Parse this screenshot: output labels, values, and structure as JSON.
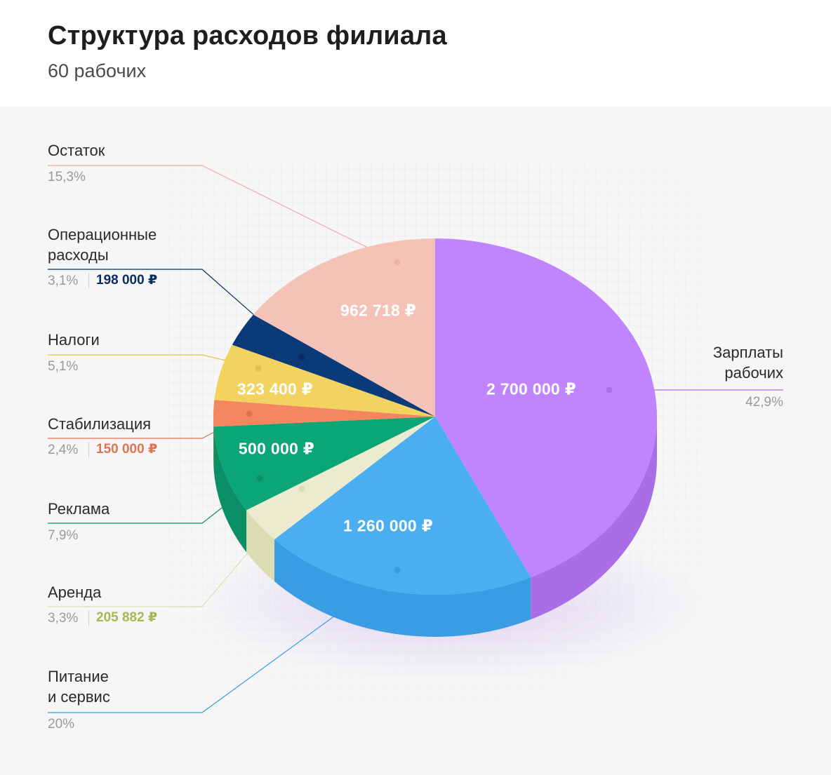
{
  "header": {
    "title": "Структура расходов филиала",
    "subtitle": "60 рабочих"
  },
  "chart_data": {
    "type": "pie",
    "title": "Структура расходов филиала",
    "subtitle": "60 рабочих",
    "slices": [
      {
        "key": "zarplaty",
        "label": "Зарплаты\nрабочих",
        "percent_label": "42,9%",
        "percent": 42.9,
        "value": 2700000,
        "value_label": "2 700 000 ₽",
        "color": "#c084fc",
        "side_color": "#a96ee6"
      },
      {
        "key": "pitanie",
        "label": "Питание\nи сервис",
        "percent_label": "20%",
        "percent": 20.0,
        "value": 1260000,
        "value_label": "1 260 000 ₽",
        "color": "#4aaef0",
        "side_color": "#3a9ce3"
      },
      {
        "key": "arenda",
        "label": "Аренда",
        "percent_label": "3,3%",
        "percent": 3.3,
        "value": 205882,
        "value_label": "205 882 ₽",
        "color": "#ecebd0",
        "side_color": "#dcdcb2"
      },
      {
        "key": "reklama",
        "label": "Реклама",
        "percent_label": "7,9%",
        "percent": 7.9,
        "value": 500000,
        "value_label": "500 000 ₽",
        "color": "#0aa676",
        "side_color": "#0b8f66"
      },
      {
        "key": "stabilizaciya",
        "label": "Стабилизация",
        "percent_label": "2,4%",
        "percent": 2.4,
        "value": 150000,
        "value_label": "150 000 ₽",
        "color": "#f4875f",
        "side_color": "#e07450"
      },
      {
        "key": "nalogi",
        "label": "Налоги",
        "percent_label": "5,1%",
        "percent": 5.1,
        "value": 323400,
        "value_label": "323 400 ₽",
        "color": "#f3d35f",
        "side_color": "#e3c24c"
      },
      {
        "key": "operacionnye",
        "label": "Операционные\nрасходы",
        "percent_label": "3,1%",
        "percent": 3.1,
        "value": 198000,
        "value_label": "198 000 ₽",
        "color": "#0b3a78",
        "side_color": "#082d5e"
      },
      {
        "key": "ostatok",
        "label": "Остаток",
        "percent_label": "15,3%",
        "percent": 15.3,
        "value": 962718,
        "value_label": "962 718 ₽",
        "color": "#f5c2b7",
        "side_color": "#e9b0a4"
      }
    ],
    "inside_labels": [
      "zarplaty",
      "pitanie",
      "reklama",
      "nalogi",
      "ostatok"
    ],
    "side_labels": [
      "zarplaty",
      "pitanie",
      "arenda",
      "reklama",
      "stabilizaciya",
      "nalogi",
      "operacionnye",
      "ostatok"
    ],
    "amount_in_side_label": [
      "operacionnye",
      "stabilizaciya",
      "arenda"
    ],
    "style": "3d-pie",
    "legend": "callout-labels"
  }
}
